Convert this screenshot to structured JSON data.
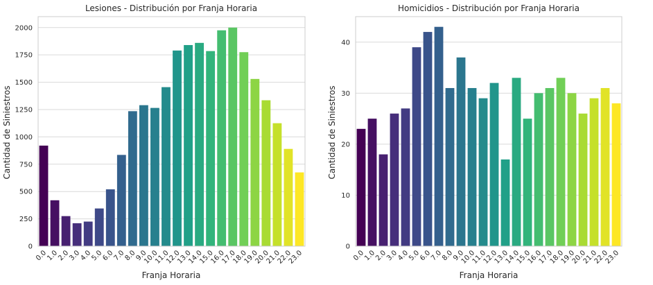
{
  "chart_data": [
    {
      "type": "bar",
      "title": "Lesiones - Distribución por Franja Horaria",
      "xlabel": "Franja Horaria",
      "ylabel": "Cantidad de Siniestros",
      "categories": [
        "0.0",
        "1.0",
        "2.0",
        "3.0",
        "4.0",
        "5.0",
        "6.0",
        "7.0",
        "8.0",
        "9.0",
        "10.0",
        "11.0",
        "12.0",
        "13.0",
        "14.0",
        "15.0",
        "16.0",
        "17.0",
        "18.0",
        "19.0",
        "20.0",
        "21.0",
        "22.0",
        "23.0"
      ],
      "values": [
        920,
        420,
        275,
        210,
        225,
        345,
        520,
        835,
        1235,
        1290,
        1265,
        1455,
        1790,
        1840,
        1860,
        1785,
        1975,
        2000,
        1775,
        1530,
        1335,
        1125,
        890,
        675
      ],
      "ylim": [
        0,
        2100
      ],
      "yticks": [
        0,
        250,
        500,
        750,
        1000,
        1250,
        1500,
        1750,
        2000
      ],
      "palette": "viridis",
      "grid": "horizontal"
    },
    {
      "type": "bar",
      "title": "Homicidios - Distribución por Franja Horaria",
      "xlabel": "Franja Horaria",
      "ylabel": "Cantidad de Siniestros",
      "categories": [
        "0.0",
        "1.0",
        "2.0",
        "3.0",
        "4.0",
        "5.0",
        "6.0",
        "7.0",
        "8.0",
        "9.0",
        "10.0",
        "11.0",
        "12.0",
        "13.0",
        "14.0",
        "15.0",
        "16.0",
        "17.0",
        "18.0",
        "19.0",
        "20.0",
        "21.0",
        "22.0",
        "23.0"
      ],
      "values": [
        23,
        25,
        18,
        26,
        27,
        39,
        42,
        43,
        31,
        37,
        31,
        29,
        32,
        17,
        33,
        25,
        30,
        31,
        33,
        30,
        26,
        29,
        31,
        28
      ],
      "ylim": [
        0,
        45
      ],
      "yticks": [
        0,
        10,
        20,
        30,
        40
      ],
      "palette": "viridis",
      "grid": "horizontal"
    }
  ]
}
